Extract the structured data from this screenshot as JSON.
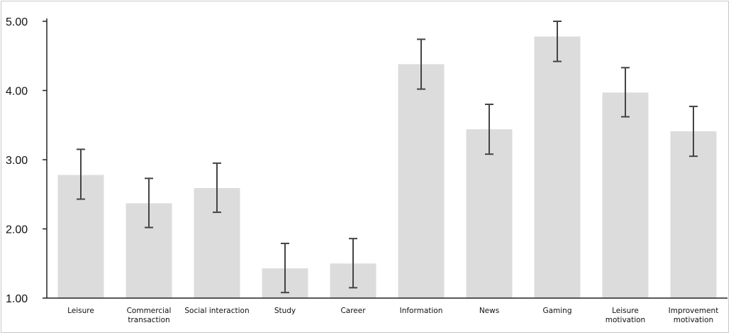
{
  "chart_data": {
    "type": "bar",
    "title": "",
    "xlabel": "",
    "ylabel": "",
    "ylim": [
      1,
      5
    ],
    "yticks": [
      "1.00",
      "2.00",
      "3.00",
      "4.00",
      "5.00"
    ],
    "categories": [
      [
        "Leisure"
      ],
      [
        "Commercial",
        "transaction"
      ],
      [
        "Social interaction"
      ],
      [
        "Study"
      ],
      [
        "Career"
      ],
      [
        "Information"
      ],
      [
        "News"
      ],
      [
        "Gaming"
      ],
      [
        "Leisure",
        "motivation"
      ],
      [
        "Improvement",
        "motivation"
      ]
    ],
    "values": [
      2.78,
      2.37,
      2.59,
      1.43,
      1.5,
      4.38,
      3.44,
      4.78,
      3.97,
      3.41
    ],
    "error_low": [
      2.43,
      2.02,
      2.24,
      1.08,
      1.15,
      4.02,
      3.08,
      4.42,
      3.62,
      3.05
    ],
    "error_high": [
      3.15,
      2.73,
      2.95,
      1.79,
      1.86,
      4.74,
      3.8,
      5.0,
      4.33,
      3.77
    ],
    "grid": false,
    "legend": "none",
    "colors": {
      "bar": "#dcdcdc",
      "error": "#444444",
      "axis": "#222222",
      "text": "#111111"
    }
  }
}
